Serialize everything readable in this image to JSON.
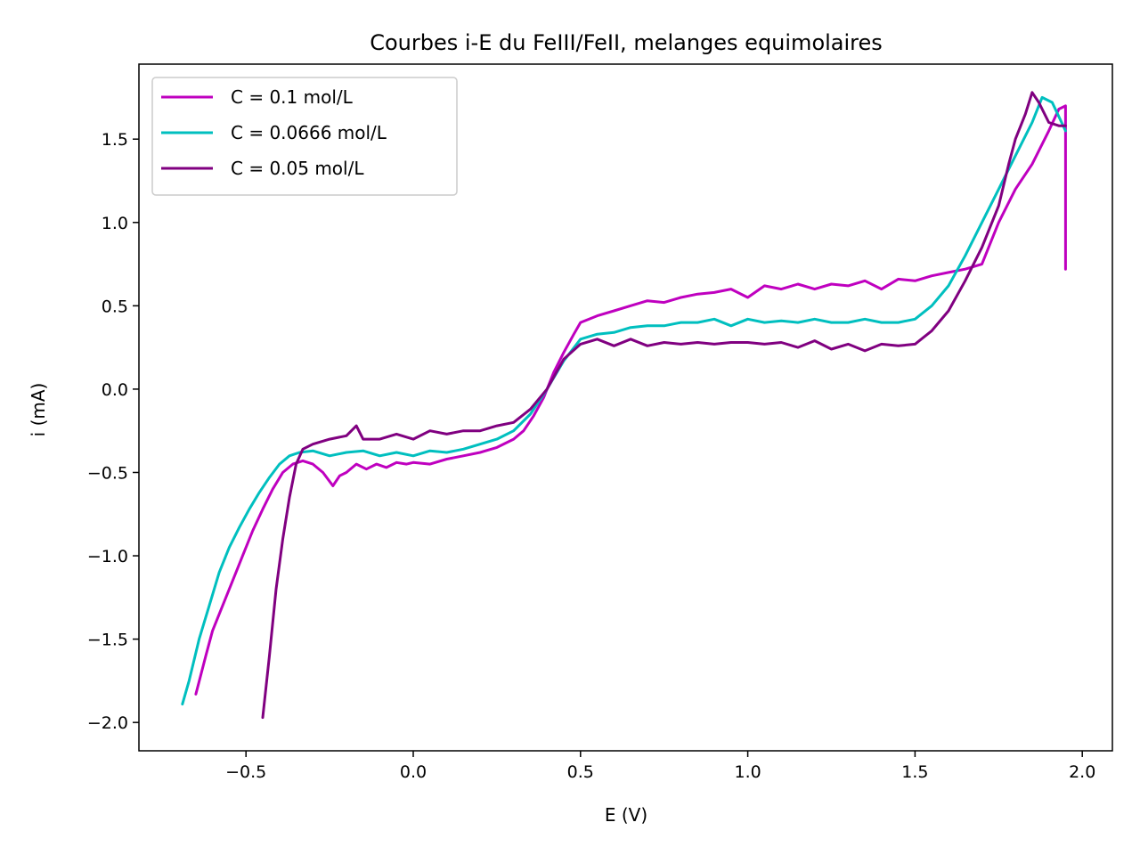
{
  "chart_data": {
    "type": "line",
    "title": "Courbes i-E du FeIII/FeII, melanges equimolaires",
    "xlabel": "E (V)",
    "ylabel": "i (mA)",
    "xlim": [
      -0.82,
      2.09
    ],
    "ylim": [
      -2.17,
      1.95
    ],
    "xticks": [
      -0.5,
      0.0,
      0.5,
      1.0,
      1.5,
      2.0
    ],
    "yticks": [
      -2.0,
      -1.5,
      -1.0,
      -0.5,
      0.0,
      0.5,
      1.0,
      1.5
    ],
    "xtick_labels": [
      "−0.5",
      "0.0",
      "0.5",
      "1.0",
      "1.5",
      "2.0"
    ],
    "ytick_labels": [
      "−2.0",
      "−1.5",
      "−1.0",
      "−0.5",
      "0.0",
      "0.5",
      "1.0",
      "1.5"
    ],
    "grid": false,
    "legend_position": "top-left",
    "series": [
      {
        "name": "C = 0.1 mol/L",
        "color": "#bf00bf",
        "x": [
          -0.65,
          -0.62,
          -0.6,
          -0.57,
          -0.54,
          -0.51,
          -0.48,
          -0.45,
          -0.42,
          -0.39,
          -0.36,
          -0.33,
          -0.3,
          -0.27,
          -0.24,
          -0.22,
          -0.2,
          -0.17,
          -0.14,
          -0.11,
          -0.08,
          -0.05,
          -0.02,
          0.0,
          0.05,
          0.1,
          0.15,
          0.2,
          0.25,
          0.3,
          0.33,
          0.36,
          0.39,
          0.42,
          0.45,
          0.48,
          0.5,
          0.55,
          0.6,
          0.65,
          0.7,
          0.75,
          0.8,
          0.85,
          0.9,
          0.95,
          1.0,
          1.05,
          1.1,
          1.15,
          1.2,
          1.25,
          1.3,
          1.35,
          1.4,
          1.45,
          1.5,
          1.55,
          1.6,
          1.65,
          1.7,
          1.75,
          1.8,
          1.85,
          1.9,
          1.93,
          1.95,
          1.95
        ],
        "y": [
          -1.83,
          -1.6,
          -1.45,
          -1.3,
          -1.15,
          -1.0,
          -0.85,
          -0.72,
          -0.6,
          -0.5,
          -0.45,
          -0.43,
          -0.45,
          -0.5,
          -0.58,
          -0.52,
          -0.5,
          -0.45,
          -0.48,
          -0.45,
          -0.47,
          -0.44,
          -0.45,
          -0.44,
          -0.45,
          -0.42,
          -0.4,
          -0.38,
          -0.35,
          -0.3,
          -0.25,
          -0.16,
          -0.05,
          0.1,
          0.22,
          0.33,
          0.4,
          0.44,
          0.47,
          0.5,
          0.53,
          0.52,
          0.55,
          0.57,
          0.58,
          0.6,
          0.55,
          0.62,
          0.6,
          0.63,
          0.6,
          0.63,
          0.62,
          0.65,
          0.6,
          0.66,
          0.65,
          0.68,
          0.7,
          0.72,
          0.75,
          1.0,
          1.2,
          1.35,
          1.55,
          1.68,
          1.7,
          0.72
        ]
      },
      {
        "name": "C = 0.0666 mol/L",
        "color": "#00bfbf",
        "x": [
          -0.69,
          -0.67,
          -0.64,
          -0.61,
          -0.58,
          -0.55,
          -0.52,
          -0.49,
          -0.46,
          -0.43,
          -0.4,
          -0.37,
          -0.34,
          -0.3,
          -0.25,
          -0.2,
          -0.15,
          -0.1,
          -0.05,
          0.0,
          0.05,
          0.1,
          0.15,
          0.2,
          0.25,
          0.3,
          0.35,
          0.4,
          0.45,
          0.5,
          0.55,
          0.6,
          0.65,
          0.7,
          0.75,
          0.8,
          0.85,
          0.9,
          0.95,
          1.0,
          1.05,
          1.1,
          1.15,
          1.2,
          1.25,
          1.3,
          1.35,
          1.4,
          1.45,
          1.5,
          1.55,
          1.6,
          1.65,
          1.7,
          1.75,
          1.8,
          1.85,
          1.88,
          1.91,
          1.95
        ],
        "y": [
          -1.89,
          -1.75,
          -1.5,
          -1.3,
          -1.1,
          -0.95,
          -0.83,
          -0.72,
          -0.62,
          -0.53,
          -0.45,
          -0.4,
          -0.38,
          -0.37,
          -0.4,
          -0.38,
          -0.37,
          -0.4,
          -0.38,
          -0.4,
          -0.37,
          -0.38,
          -0.36,
          -0.33,
          -0.3,
          -0.25,
          -0.15,
          0.0,
          0.17,
          0.3,
          0.33,
          0.34,
          0.37,
          0.38,
          0.38,
          0.4,
          0.4,
          0.42,
          0.38,
          0.42,
          0.4,
          0.41,
          0.4,
          0.42,
          0.4,
          0.4,
          0.42,
          0.4,
          0.4,
          0.42,
          0.5,
          0.62,
          0.8,
          1.0,
          1.2,
          1.4,
          1.6,
          1.75,
          1.72,
          1.55
        ]
      },
      {
        "name": "C = 0.05 mol/L",
        "color": "#800080",
        "x": [
          -0.45,
          -0.43,
          -0.41,
          -0.39,
          -0.37,
          -0.35,
          -0.33,
          -0.3,
          -0.25,
          -0.2,
          -0.17,
          -0.15,
          -0.1,
          -0.05,
          0.0,
          0.05,
          0.1,
          0.15,
          0.2,
          0.25,
          0.3,
          0.35,
          0.4,
          0.45,
          0.5,
          0.55,
          0.6,
          0.65,
          0.7,
          0.75,
          0.8,
          0.85,
          0.9,
          0.95,
          1.0,
          1.05,
          1.1,
          1.15,
          1.2,
          1.25,
          1.3,
          1.35,
          1.4,
          1.45,
          1.5,
          1.55,
          1.6,
          1.65,
          1.7,
          1.75,
          1.78,
          1.8,
          1.83,
          1.85,
          1.87,
          1.9,
          1.93,
          1.95
        ],
        "y": [
          -1.97,
          -1.6,
          -1.2,
          -0.9,
          -0.65,
          -0.45,
          -0.36,
          -0.33,
          -0.3,
          -0.28,
          -0.22,
          -0.3,
          -0.3,
          -0.27,
          -0.3,
          -0.25,
          -0.27,
          -0.25,
          -0.25,
          -0.22,
          -0.2,
          -0.12,
          0.0,
          0.18,
          0.27,
          0.3,
          0.26,
          0.3,
          0.26,
          0.28,
          0.27,
          0.28,
          0.27,
          0.28,
          0.28,
          0.27,
          0.28,
          0.25,
          0.29,
          0.24,
          0.27,
          0.23,
          0.27,
          0.26,
          0.27,
          0.35,
          0.47,
          0.65,
          0.85,
          1.1,
          1.35,
          1.5,
          1.65,
          1.78,
          1.72,
          1.6,
          1.58,
          1.58
        ]
      }
    ]
  }
}
